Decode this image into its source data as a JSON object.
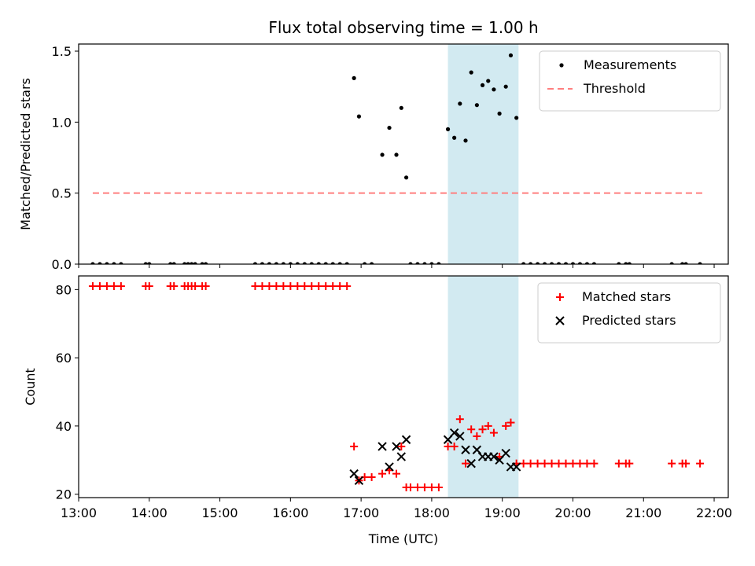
{
  "chart_data": {
    "title": "Flux total observing time = 1.00 h",
    "xlabel": "Time (UTC)",
    "x_unit": "hours (UTC)",
    "xlim": [
      13.0,
      22.2
    ],
    "x_tick_values": [
      13,
      14,
      15,
      16,
      17,
      18,
      19,
      20,
      21,
      22
    ],
    "x_tick_labels": [
      "13:00",
      "14:00",
      "15:00",
      "16:00",
      "17:00",
      "18:00",
      "19:00",
      "20:00",
      "21:00",
      "22:00"
    ],
    "shaded_interval": {
      "start": 18.23,
      "end": 19.23,
      "color": "#add8e6"
    },
    "panels": [
      {
        "type": "scatter",
        "ylabel": "Matched/Predicted stars",
        "ylim": [
          0,
          1.55
        ],
        "y_ticks": [
          0.0,
          0.5,
          1.0,
          1.5
        ],
        "y_tick_labels": [
          "0.0",
          "0.5",
          "1.0",
          "1.5"
        ],
        "legend_position": "top-right",
        "series": [
          {
            "name": "Measurements",
            "marker": "dot",
            "color": "#000000",
            "x": [
              13.2,
              13.3,
              13.4,
              13.5,
              13.6,
              13.95,
              14.0,
              14.3,
              14.35,
              14.5,
              14.55,
              14.6,
              14.65,
              14.75,
              14.8,
              15.5,
              15.6,
              15.7,
              15.8,
              15.9,
              16.0,
              16.1,
              16.2,
              16.3,
              16.4,
              16.5,
              16.6,
              16.7,
              16.8,
              16.9,
              16.97,
              17.05,
              17.15,
              17.3,
              17.4,
              17.5,
              17.57,
              17.64,
              17.7,
              17.8,
              17.9,
              18.0,
              18.1,
              18.23,
              18.32,
              18.4,
              18.48,
              18.56,
              18.64,
              18.72,
              18.8,
              18.88,
              18.96,
              19.05,
              19.12,
              19.2,
              19.3,
              19.4,
              19.5,
              19.6,
              19.7,
              19.8,
              19.9,
              20.0,
              20.1,
              20.2,
              20.3,
              20.65,
              20.75,
              20.8,
              21.4,
              21.55,
              21.6,
              21.8
            ],
            "y": [
              0,
              0,
              0,
              0,
              0,
              0,
              0,
              0,
              0,
              0,
              0,
              0,
              0,
              0,
              0,
              0,
              0,
              0,
              0,
              0,
              0,
              0,
              0,
              0,
              0,
              0,
              0,
              0,
              0,
              1.31,
              1.04,
              0,
              0,
              0.77,
              0.96,
              0.77,
              1.1,
              0.61,
              0,
              0,
              0,
              0,
              0,
              0.95,
              0.89,
              1.13,
              0.87,
              1.35,
              1.12,
              1.26,
              1.29,
              1.23,
              1.06,
              1.25,
              1.47,
              1.03,
              0,
              0,
              0,
              0,
              0,
              0,
              0,
              0,
              0,
              0,
              0,
              0,
              0,
              0,
              0,
              0,
              0,
              0
            ]
          },
          {
            "name": "Threshold",
            "marker": "dashed-line",
            "color": "#ff7f7f",
            "x": [
              13.2,
              21.85
            ],
            "y": [
              0.5,
              0.5
            ]
          }
        ]
      },
      {
        "type": "scatter",
        "ylabel": "Count",
        "ylim": [
          19,
          84
        ],
        "y_ticks": [
          20,
          40,
          60,
          80
        ],
        "y_tick_labels": [
          "20",
          "40",
          "60",
          "80"
        ],
        "legend_position": "top-right",
        "series": [
          {
            "name": "Matched stars",
            "marker": "plus",
            "color": "#ff0000",
            "x": [
              13.2,
              13.3,
              13.4,
              13.5,
              13.6,
              13.95,
              14.0,
              14.3,
              14.35,
              14.5,
              14.55,
              14.6,
              14.65,
              14.75,
              14.8,
              15.5,
              15.6,
              15.7,
              15.8,
              15.9,
              16.0,
              16.1,
              16.2,
              16.3,
              16.4,
              16.5,
              16.6,
              16.7,
              16.8,
              16.9,
              16.97,
              17.05,
              17.15,
              17.3,
              17.4,
              17.5,
              17.57,
              17.64,
              17.7,
              17.8,
              17.9,
              18.0,
              18.1,
              18.23,
              18.32,
              18.4,
              18.48,
              18.56,
              18.64,
              18.72,
              18.8,
              18.88,
              18.96,
              19.05,
              19.12,
              19.2,
              19.3,
              19.4,
              19.5,
              19.6,
              19.7,
              19.8,
              19.9,
              20.0,
              20.1,
              20.2,
              20.3,
              20.65,
              20.75,
              20.8,
              21.4,
              21.55,
              21.6,
              21.8
            ],
            "y": [
              81,
              81,
              81,
              81,
              81,
              81,
              81,
              81,
              81,
              81,
              81,
              81,
              81,
              81,
              81,
              81,
              81,
              81,
              81,
              81,
              81,
              81,
              81,
              81,
              81,
              81,
              81,
              81,
              81,
              34,
              24,
              25,
              25,
              26,
              27,
              26,
              34,
              22,
              22,
              22,
              22,
              22,
              22,
              34,
              34,
              42,
              29,
              39,
              37,
              39,
              40,
              38,
              31,
              40,
              41,
              29,
              29,
              29,
              29,
              29,
              29,
              29,
              29,
              29,
              29,
              29,
              29,
              29,
              29,
              29,
              29,
              29,
              29,
              29
            ]
          },
          {
            "name": "Predicted stars",
            "marker": "x",
            "color": "#000000",
            "x": [
              16.9,
              16.97,
              17.3,
              17.4,
              17.5,
              17.57,
              17.64,
              18.23,
              18.32,
              18.4,
              18.48,
              18.56,
              18.64,
              18.72,
              18.8,
              18.88,
              18.96,
              19.05,
              19.12,
              19.2
            ],
            "y": [
              26,
              24,
              34,
              28,
              34,
              31,
              36,
              36,
              38,
              37,
              33,
              29,
              33,
              31,
              31,
              31,
              30,
              32,
              28,
              28
            ]
          }
        ]
      }
    ]
  }
}
